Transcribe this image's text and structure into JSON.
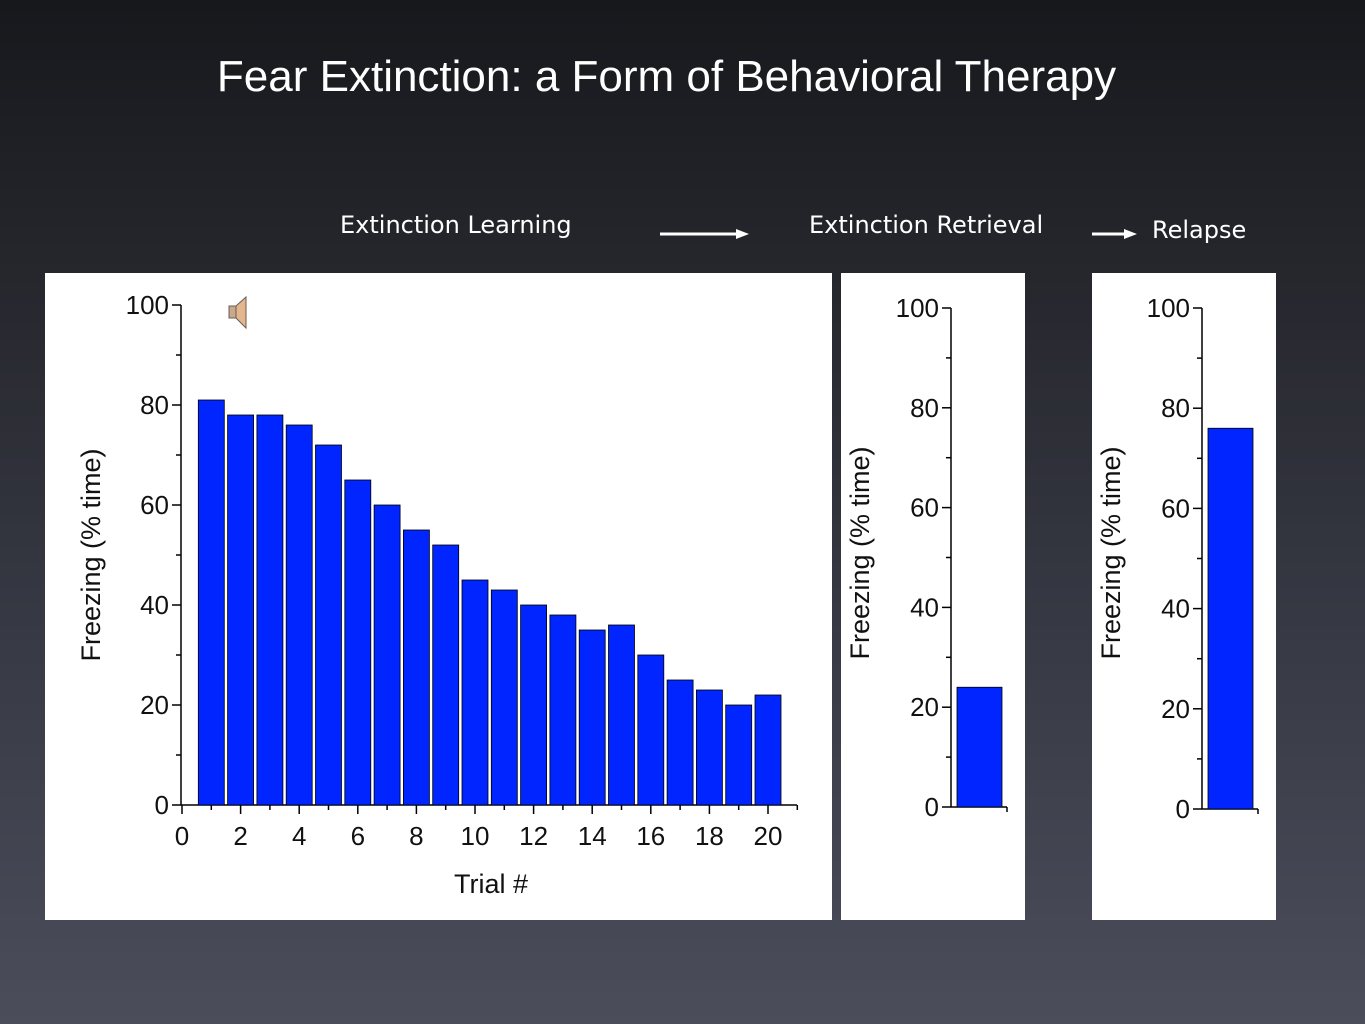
{
  "slide": {
    "title": "Fear Extinction: a Form of Behavioral Therapy",
    "stages": [
      "Extinction Learning",
      "Extinction Retrieval",
      "Relapse"
    ]
  },
  "colors": {
    "bar": "#0025ff",
    "bar_edge": "#000000",
    "background": "#2a2b33"
  },
  "icons": {
    "speaker": "speaker-icon"
  },
  "chart_data": [
    {
      "type": "bar",
      "xlabel": "Trial #",
      "ylabel": "Freezing (% time)",
      "x": [
        1,
        2,
        3,
        4,
        5,
        6,
        7,
        8,
        9,
        10,
        11,
        12,
        13,
        14,
        15,
        16,
        17,
        18,
        19,
        20
      ],
      "values": [
        81,
        78,
        78,
        76,
        72,
        65,
        60,
        55,
        52,
        45,
        43,
        40,
        38,
        35,
        36,
        30,
        25,
        23,
        20,
        22
      ],
      "xlim": [
        0,
        21
      ],
      "ylim": [
        0,
        100
      ],
      "x_ticks": [
        "0",
        "2",
        "4",
        "6",
        "8",
        "10",
        "12",
        "14",
        "16",
        "18",
        "20"
      ],
      "y_ticks": [
        "0",
        "20",
        "40",
        "60",
        "80",
        "100"
      ]
    },
    {
      "type": "bar",
      "ylabel": "Freezing (% time)",
      "values": [
        24
      ],
      "ylim": [
        0,
        100
      ],
      "y_ticks": [
        "0",
        "20",
        "40",
        "60",
        "80",
        "100"
      ]
    },
    {
      "type": "bar",
      "ylabel": "Freezing (% time)",
      "values": [
        76
      ],
      "ylim": [
        0,
        100
      ],
      "y_ticks": [
        "0",
        "20",
        "40",
        "60",
        "80",
        "100"
      ]
    }
  ]
}
